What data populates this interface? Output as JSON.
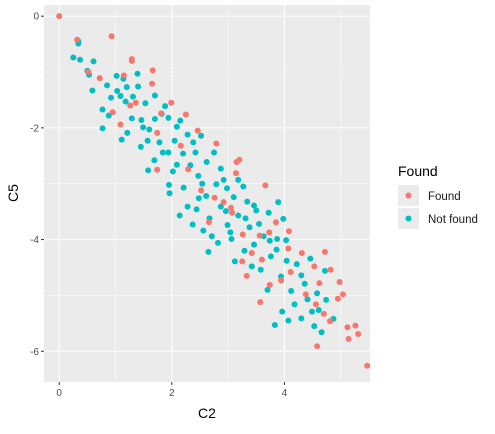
{
  "chart_data": {
    "type": "scatter",
    "xlabel": "C2",
    "ylabel": "C5",
    "xlim": [
      -0.27,
      5.52
    ],
    "ylim": [
      -6.55,
      0.2
    ],
    "x_ticks": [
      0,
      2,
      4
    ],
    "y_ticks": [
      0,
      -2,
      -4,
      -6
    ],
    "x_tick_labels": [
      "0",
      "2",
      "4"
    ],
    "y_tick_labels": [
      "0",
      "-2",
      "-4",
      "-6"
    ],
    "grid": true,
    "legend": {
      "title": "Found",
      "placement": "right",
      "entries": [
        {
          "label": "Found",
          "color": "#F8766D"
        },
        {
          "label": "Not found",
          "color": "#00BFC4"
        }
      ]
    },
    "series": [
      {
        "name": "Found",
        "color": "#F8766D",
        "points": [
          [
            0.0,
            0.0
          ],
          [
            0.32,
            -0.42
          ],
          [
            0.93,
            -0.36
          ],
          [
            0.72,
            -1.11
          ],
          [
            0.52,
            -1.0
          ],
          [
            1.29,
            -0.77
          ],
          [
            1.29,
            -0.8
          ],
          [
            1.15,
            -1.06
          ],
          [
            1.66,
            -0.97
          ],
          [
            1.65,
            -1.21
          ],
          [
            1.26,
            -1.6
          ],
          [
            1.36,
            -1.55
          ],
          [
            0.95,
            -1.72
          ],
          [
            1.09,
            -1.94
          ],
          [
            1.99,
            -1.55
          ],
          [
            1.81,
            -1.74
          ],
          [
            2.25,
            -1.76
          ],
          [
            1.74,
            -2.09
          ],
          [
            2.16,
            -2.32
          ],
          [
            2.46,
            -2.05
          ],
          [
            1.74,
            -2.75
          ],
          [
            2.79,
            -2.28
          ],
          [
            2.29,
            -2.74
          ],
          [
            2.52,
            -3.12
          ],
          [
            2.76,
            -3.25
          ],
          [
            2.92,
            -3.33
          ],
          [
            3.14,
            -2.81
          ],
          [
            3.15,
            -2.61
          ],
          [
            3.2,
            -2.57
          ],
          [
            3.05,
            -3.43
          ],
          [
            2.66,
            -3.69
          ],
          [
            3.07,
            -3.52
          ],
          [
            3.26,
            -3.91
          ],
          [
            3.66,
            -3.03
          ],
          [
            3.85,
            -3.69
          ],
          [
            3.73,
            -3.87
          ],
          [
            3.56,
            -3.93
          ],
          [
            3.42,
            -4.24
          ],
          [
            3.25,
            -4.39
          ],
          [
            3.33,
            -4.65
          ],
          [
            3.6,
            -4.36
          ],
          [
            4.08,
            -3.85
          ],
          [
            4.07,
            -4.16
          ],
          [
            4.31,
            -4.24
          ],
          [
            4.11,
            -4.58
          ],
          [
            3.94,
            -4.73
          ],
          [
            3.74,
            -4.81
          ],
          [
            4.72,
            -4.22
          ],
          [
            4.53,
            -4.48
          ],
          [
            4.62,
            -4.78
          ],
          [
            4.82,
            -4.54
          ],
          [
            4.38,
            -4.98
          ],
          [
            4.56,
            -5.16
          ],
          [
            4.7,
            -5.33
          ],
          [
            4.98,
            -4.76
          ],
          [
            5.04,
            -4.98
          ],
          [
            4.95,
            -5.06
          ],
          [
            5.12,
            -5.57
          ],
          [
            5.14,
            -5.78
          ],
          [
            5.26,
            -5.54
          ],
          [
            5.31,
            -5.69
          ],
          [
            5.47,
            -6.26
          ],
          [
            4.58,
            -5.91
          ],
          [
            3.57,
            -5.12
          ],
          [
            4.81,
            -5.46
          ]
        ]
      },
      {
        "name": "Not found",
        "color": "#00BFC4",
        "points": [
          [
            0.34,
            -0.45
          ],
          [
            0.34,
            -0.49
          ],
          [
            0.25,
            -0.74
          ],
          [
            0.37,
            -0.78
          ],
          [
            0.5,
            -0.98
          ],
          [
            0.53,
            -1.05
          ],
          [
            0.59,
            -1.33
          ],
          [
            0.85,
            -1.24
          ],
          [
            0.92,
            -1.46
          ],
          [
            0.77,
            -1.67
          ],
          [
            1.03,
            -1.34
          ],
          [
            1.14,
            -1.12
          ],
          [
            1.2,
            -1.27
          ],
          [
            1.39,
            -1.03
          ],
          [
            1.18,
            -1.53
          ],
          [
            0.88,
            -1.78
          ],
          [
            0.77,
            -2.01
          ],
          [
            1.09,
            -1.43
          ],
          [
            1.4,
            -1.26
          ],
          [
            1.53,
            -1.56
          ],
          [
            1.29,
            -1.83
          ],
          [
            1.49,
            -1.99
          ],
          [
            1.21,
            -2.09
          ],
          [
            1.11,
            -2.21
          ],
          [
            1.45,
            -2.34
          ],
          [
            1.6,
            -2.03
          ],
          [
            1.82,
            -1.75
          ],
          [
            1.7,
            -1.42
          ],
          [
            1.88,
            -1.61
          ],
          [
            1.94,
            -1.82
          ],
          [
            2.09,
            -1.98
          ],
          [
            1.78,
            -2.26
          ],
          [
            1.69,
            -2.58
          ],
          [
            1.94,
            -2.44
          ],
          [
            2.05,
            -2.23
          ],
          [
            2.2,
            -2.46
          ],
          [
            2.38,
            -2.26
          ],
          [
            2.52,
            -2.14
          ],
          [
            2.33,
            -2.67
          ],
          [
            2.02,
            -2.78
          ],
          [
            1.95,
            -3.02
          ],
          [
            2.21,
            -3.07
          ],
          [
            2.47,
            -2.86
          ],
          [
            2.62,
            -2.61
          ],
          [
            2.75,
            -2.44
          ],
          [
            2.87,
            -2.73
          ],
          [
            2.61,
            -3.22
          ],
          [
            2.44,
            -3.46
          ],
          [
            2.14,
            -3.57
          ],
          [
            2.37,
            -3.73
          ],
          [
            2.67,
            -3.62
          ],
          [
            2.87,
            -3.41
          ],
          [
            2.98,
            -3.08
          ],
          [
            3.1,
            -3.24
          ],
          [
            3.27,
            -3.05
          ],
          [
            3.18,
            -3.57
          ],
          [
            3.04,
            -3.87
          ],
          [
            2.82,
            -4.06
          ],
          [
            2.65,
            -4.22
          ],
          [
            2.71,
            -3.94
          ],
          [
            2.99,
            -3.74
          ],
          [
            3.31,
            -3.62
          ],
          [
            3.46,
            -3.39
          ],
          [
            3.38,
            -3.78
          ],
          [
            3.46,
            -4.09
          ],
          [
            3.29,
            -4.2
          ],
          [
            3.12,
            -4.39
          ],
          [
            3.55,
            -3.72
          ],
          [
            3.72,
            -3.52
          ],
          [
            3.89,
            -3.33
          ],
          [
            3.98,
            -3.63
          ],
          [
            3.74,
            -4.02
          ],
          [
            3.58,
            -4.54
          ],
          [
            3.86,
            -4.18
          ],
          [
            4.03,
            -4.01
          ],
          [
            4.22,
            -4.44
          ],
          [
            3.94,
            -4.66
          ],
          [
            3.7,
            -4.9
          ],
          [
            4.12,
            -4.92
          ],
          [
            4.3,
            -4.64
          ],
          [
            4.46,
            -4.34
          ],
          [
            4.36,
            -4.79
          ],
          [
            4.18,
            -5.16
          ],
          [
            4.41,
            -5.07
          ],
          [
            4.58,
            -4.96
          ],
          [
            4.61,
            -5.26
          ],
          [
            4.74,
            -5.08
          ],
          [
            4.72,
            -4.56
          ],
          [
            4.66,
            -5.66
          ],
          [
            4.87,
            -5.42
          ],
          [
            3.83,
            -5.53
          ],
          [
            4.07,
            -5.45
          ],
          [
            4.3,
            -5.41
          ],
          [
            4.49,
            -5.29
          ],
          [
            3.96,
            -5.29
          ],
          [
            1.58,
            -2.76
          ],
          [
            1.96,
            -3.17
          ],
          [
            2.28,
            -3.41
          ],
          [
            2.56,
            -3.84
          ],
          [
            2.09,
            -2.66
          ],
          [
            1.46,
            -1.86
          ],
          [
            1.7,
            -1.84
          ],
          [
            2.42,
            -2.44
          ],
          [
            2.54,
            -3.0
          ],
          [
            2.92,
            -2.93
          ],
          [
            3.34,
            -3.32
          ],
          [
            3.63,
            -3.94
          ],
          [
            3.87,
            -3.99
          ],
          [
            3.18,
            -2.93
          ],
          [
            3.5,
            -3.48
          ],
          [
            2.15,
            -1.87
          ],
          [
            1.31,
            -1.44
          ],
          [
            1.02,
            -1.07
          ],
          [
            0.61,
            -0.81
          ],
          [
            1.57,
            -2.23
          ],
          [
            2.28,
            -2.12
          ],
          [
            2.79,
            -3.01
          ],
          [
            2.96,
            -3.49
          ],
          [
            3.42,
            -4.48
          ],
          [
            4.04,
            -4.38
          ],
          [
            4.53,
            -5.55
          ],
          [
            1.84,
            -2.44
          ],
          [
            2.48,
            -3.26
          ],
          [
            3.06,
            -3.99
          ],
          [
            3.76,
            -4.3
          ]
        ]
      }
    ]
  }
}
